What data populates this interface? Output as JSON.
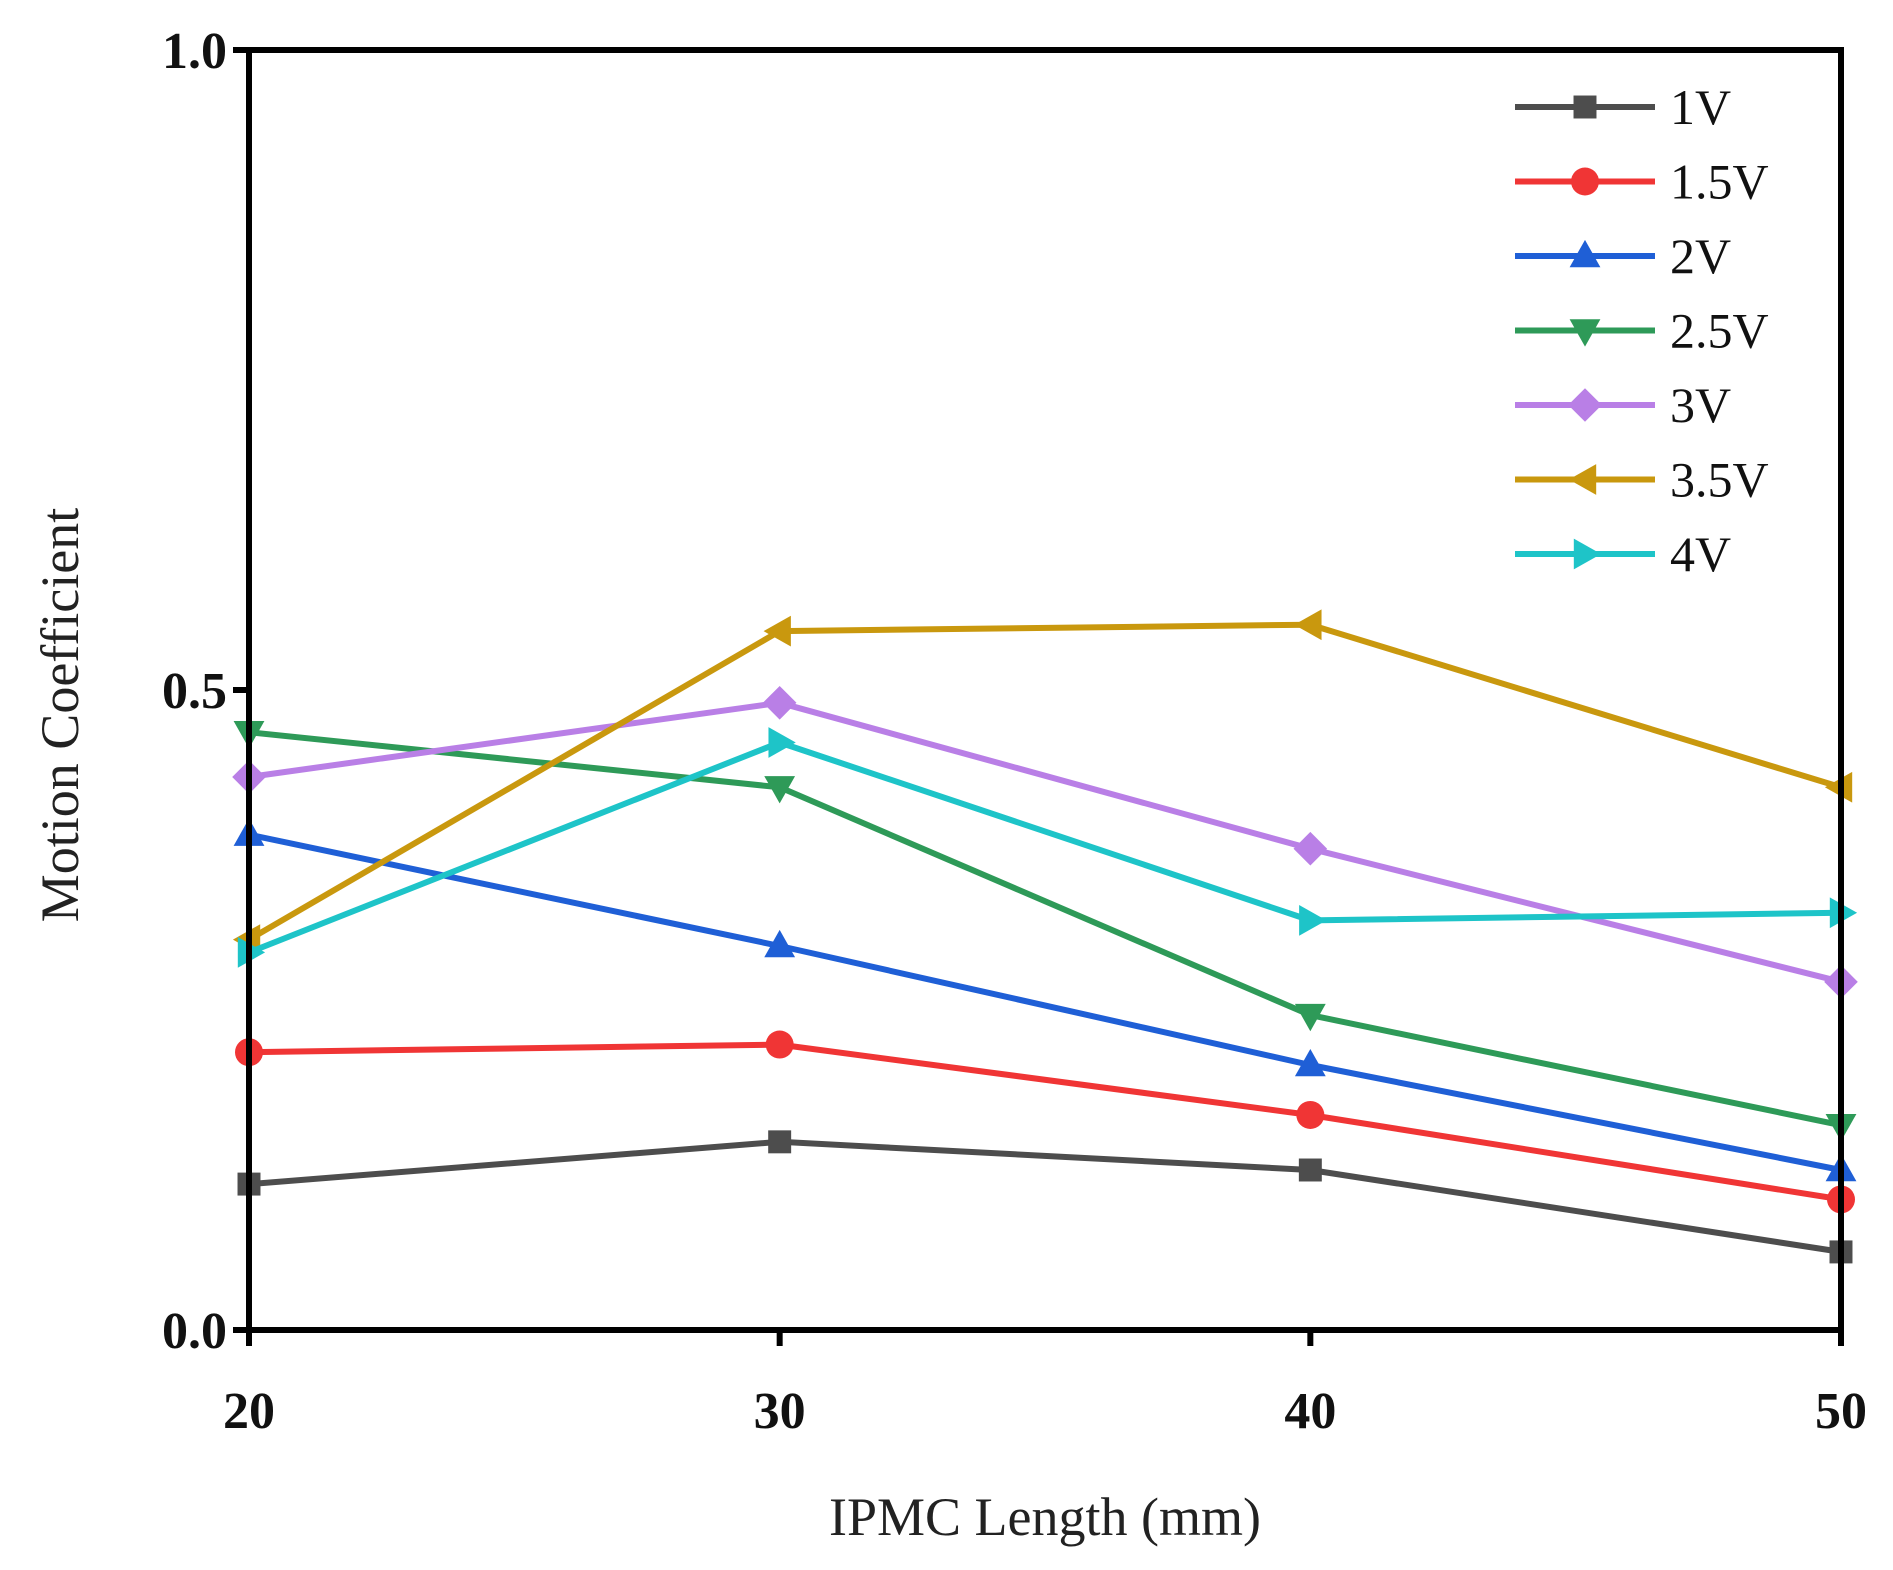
{
  "chart_data": {
    "type": "line",
    "xlabel": "IPMC Length (mm)",
    "ylabel": "Motion Coefficient",
    "x": [
      20,
      30,
      40,
      50
    ],
    "xlim": [
      20,
      50
    ],
    "ylim": [
      0.0,
      1.0
    ],
    "x_ticks": [
      20,
      30,
      40,
      50
    ],
    "x_tick_labels": [
      "20",
      "30",
      "40",
      "50"
    ],
    "y_ticks": [
      0.0,
      0.5,
      1.0
    ],
    "y_tick_labels": [
      "0.0",
      "0.5",
      "1.0"
    ],
    "grid": false,
    "legend_position": "top-right",
    "series": [
      {
        "name": "1V",
        "marker": "square",
        "color": "#4d4d4d",
        "values": [
          0.114,
          0.147,
          0.125,
          0.061
        ]
      },
      {
        "name": "1.5V",
        "marker": "circle",
        "color": "#f03535",
        "values": [
          0.217,
          0.223,
          0.168,
          0.102
        ]
      },
      {
        "name": "2V",
        "marker": "triangle-up",
        "color": "#1f5fd6",
        "values": [
          0.387,
          0.3,
          0.207,
          0.125
        ]
      },
      {
        "name": "2.5V",
        "marker": "triangle-down",
        "color": "#2e9a58",
        "values": [
          0.467,
          0.424,
          0.246,
          0.16
        ]
      },
      {
        "name": "3V",
        "marker": "diamond",
        "color": "#b97fe6",
        "values": [
          0.432,
          0.49,
          0.376,
          0.272
        ]
      },
      {
        "name": "3.5V",
        "marker": "triangle-left",
        "color": "#c9980e",
        "values": [
          0.305,
          0.546,
          0.551,
          0.424
        ]
      },
      {
        "name": "4V",
        "marker": "triangle-right",
        "color": "#1ec4c8",
        "values": [
          0.295,
          0.459,
          0.32,
          0.326
        ]
      }
    ]
  }
}
